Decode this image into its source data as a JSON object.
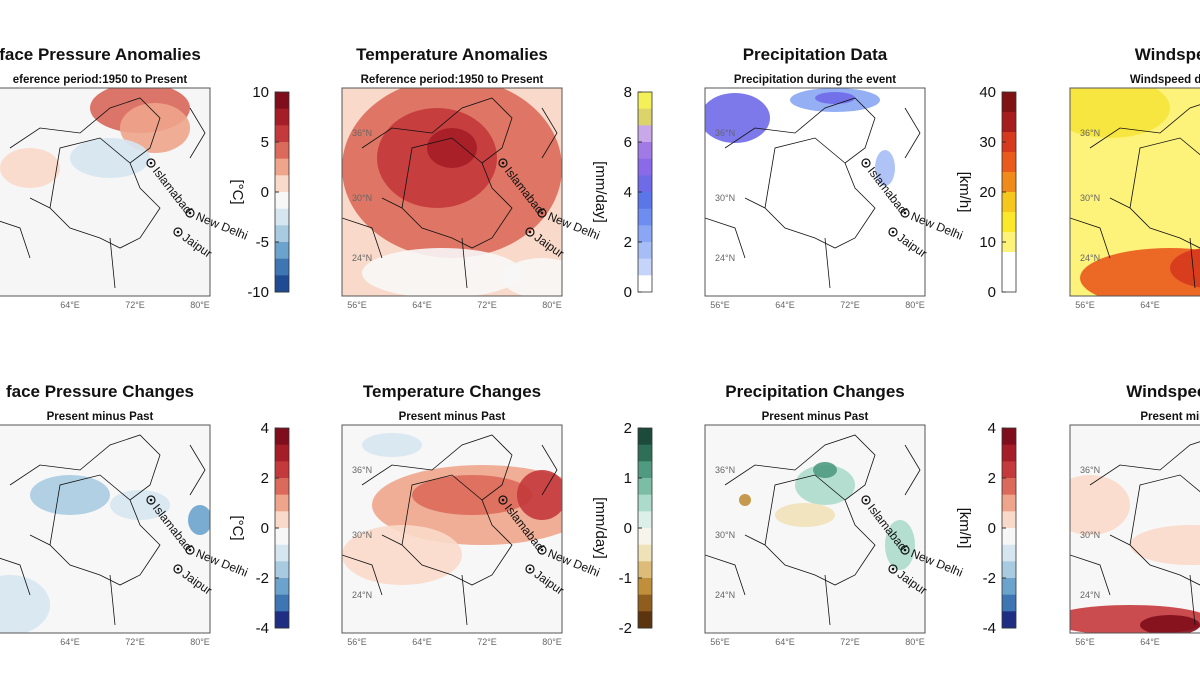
{
  "cities": [
    "Islamabad",
    "New Delhi",
    "Jaipur"
  ],
  "panels": [
    {
      "title": "face Pressure Anomalies",
      "subtitle": "eference period:1950 to Present",
      "lat_labels": [],
      "lon_labels": [
        "64°E",
        "72°E",
        "80°E"
      ]
    },
    {
      "title": "Temperature Anomalies",
      "subtitle": "Reference period:1950 to Present",
      "lat_labels": [
        "36°N",
        "30°N",
        "24°N"
      ],
      "lon_labels": [
        "56°E",
        "64°E",
        "72°E",
        "80°E"
      ]
    },
    {
      "title": "Precipitation Data",
      "subtitle": "Precipitation during the event",
      "lat_labels": [
        "36°N",
        "30°N",
        "24°N"
      ],
      "lon_labels": [
        "56°E",
        "64°E",
        "72°E",
        "80°E"
      ]
    },
    {
      "title": "Windspeed",
      "subtitle": "Windspeed during",
      "lat_labels": [
        "36°N",
        "30°N",
        "24°N"
      ],
      "lon_labels": [
        "56°E",
        "64°E"
      ]
    },
    {
      "title": "face Pressure Changes",
      "subtitle": "Present minus Past",
      "lat_labels": [],
      "lon_labels": [
        "64°E",
        "72°E",
        "80°E"
      ]
    },
    {
      "title": "Temperature Changes",
      "subtitle": "Present minus Past",
      "lat_labels": [
        "36°N",
        "30°N",
        "24°N"
      ],
      "lon_labels": [
        "56°E",
        "64°E",
        "72°E",
        "80°E"
      ]
    },
    {
      "title": "Precipitation Changes",
      "subtitle": "Present minus Past",
      "lat_labels": [
        "36°N",
        "30°N",
        "24°N"
      ],
      "lon_labels": [
        "56°E",
        "64°E",
        "72°E",
        "80°E"
      ]
    },
    {
      "title": "Windspeed C",
      "subtitle": "Present minus",
      "lat_labels": [
        "36°N",
        "30°N",
        "24°N"
      ],
      "lon_labels": [
        "56°E",
        "64°E"
      ]
    }
  ],
  "colorbars": [
    {
      "label": "[°C]",
      "ticks": [
        10,
        5,
        0,
        -5,
        -10
      ],
      "colors": [
        "#7f0d1b",
        "#a51d27",
        "#c4393b",
        "#dc6a5a",
        "#eea58b",
        "#f9d9c9",
        "#f7f7f7",
        "#d6e6f1",
        "#a8cbe1",
        "#6ca3cd",
        "#3e75b3",
        "#1f4b93"
      ]
    },
    {
      "label": "[mm/day]",
      "ticks": [
        8,
        6,
        4,
        2,
        0
      ],
      "colors": [
        "#f4f058",
        "#dcd36a",
        "#c8a8e8",
        "#a27ae6",
        "#8a6ae8",
        "#6f6ae8",
        "#5a76e8",
        "#6d8ef0",
        "#8aa6f4",
        "#a7bdf6",
        "#c5d4f8",
        "#ffffff"
      ]
    },
    {
      "label": "[km/h]",
      "ticks": [
        40,
        30,
        20,
        10,
        0
      ],
      "colors": [
        "#7f1212",
        "#a71c1c",
        "#d63a1e",
        "#ea5a1c",
        "#f08a1a",
        "#f6c81e",
        "#fbe82a",
        "#fdf27a",
        "#ffffff",
        "#ffffff"
      ]
    },
    {
      "label": "[°C]",
      "ticks": [
        4,
        2,
        0,
        -2,
        -4
      ],
      "colors": [
        "#7f0d1b",
        "#a51d27",
        "#c4393b",
        "#dc6a5a",
        "#eea58b",
        "#f9d9c9",
        "#f7f7f7",
        "#d6e6f1",
        "#a8cbe1",
        "#6ca3cd",
        "#3e75b3",
        "#1f2e83"
      ]
    },
    {
      "label": "[mm/day]",
      "ticks": [
        2,
        1,
        0,
        -1,
        -2
      ],
      "colors": [
        "#1c4a3b",
        "#2f6f58",
        "#4f9a80",
        "#7cbea5",
        "#acdacb",
        "#dcefe8",
        "#f7f4ec",
        "#efe1b8",
        "#dcbc78",
        "#bf8f3c",
        "#8f5d1e",
        "#5c3510"
      ]
    },
    {
      "label": "[km/h]",
      "ticks": [
        4,
        2,
        0,
        -2,
        -4
      ],
      "colors": [
        "#7f0d1b",
        "#a51d27",
        "#c4393b",
        "#dc6a5a",
        "#eea58b",
        "#f9d9c9",
        "#f7f7f7",
        "#d6e6f1",
        "#a8cbe1",
        "#6ca3cd",
        "#3e75b3",
        "#1f2e83"
      ]
    }
  ]
}
